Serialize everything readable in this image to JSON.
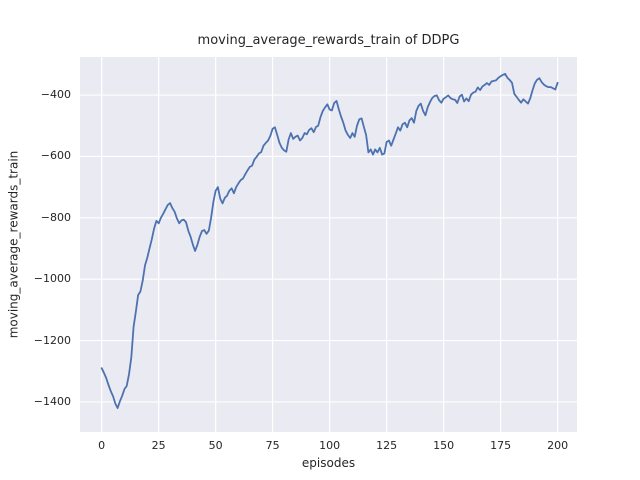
{
  "chart_data": {
    "type": "line",
    "title": "moving_average_rewards_train of DDPG",
    "xlabel": "episodes",
    "ylabel": "moving_average_rewards_train",
    "x_ticks": [
      0,
      25,
      50,
      75,
      100,
      125,
      150,
      175,
      200
    ],
    "y_ticks": [
      -1400,
      -1200,
      -1000,
      -800,
      -600,
      -400
    ],
    "xlim": [
      -9.5,
      208.5
    ],
    "ylim": [
      -1498,
      -276
    ],
    "grid": true,
    "legend": "none",
    "colors": {
      "line": "#4c72b0",
      "axes_background": "#eaeaf2",
      "grid": "#ffffff",
      "figure_background": "#ffffff",
      "text": "#262626"
    },
    "series": [
      {
        "name": "moving_average_rewards_train",
        "x_start": 0,
        "x_step": 1,
        "values": [
          -1290,
          -1305,
          -1322,
          -1345,
          -1365,
          -1382,
          -1405,
          -1420,
          -1398,
          -1380,
          -1358,
          -1348,
          -1310,
          -1255,
          -1155,
          -1105,
          -1052,
          -1040,
          -1005,
          -955,
          -930,
          -900,
          -870,
          -835,
          -810,
          -818,
          -800,
          -787,
          -772,
          -758,
          -752,
          -768,
          -780,
          -802,
          -818,
          -808,
          -806,
          -814,
          -842,
          -862,
          -888,
          -908,
          -888,
          -862,
          -843,
          -840,
          -852,
          -842,
          -800,
          -748,
          -712,
          -700,
          -737,
          -753,
          -735,
          -728,
          -712,
          -704,
          -720,
          -700,
          -688,
          -677,
          -672,
          -658,
          -645,
          -634,
          -630,
          -610,
          -601,
          -590,
          -586,
          -565,
          -556,
          -548,
          -532,
          -510,
          -505,
          -530,
          -556,
          -572,
          -580,
          -585,
          -545,
          -524,
          -543,
          -536,
          -532,
          -548,
          -540,
          -524,
          -528,
          -514,
          -508,
          -521,
          -504,
          -500,
          -472,
          -452,
          -440,
          -430,
          -447,
          -450,
          -426,
          -419,
          -446,
          -470,
          -490,
          -516,
          -530,
          -540,
          -524,
          -536,
          -500,
          -479,
          -476,
          -503,
          -530,
          -587,
          -577,
          -594,
          -577,
          -587,
          -572,
          -594,
          -590,
          -553,
          -548,
          -565,
          -545,
          -525,
          -505,
          -516,
          -495,
          -490,
          -505,
          -483,
          -475,
          -490,
          -452,
          -435,
          -428,
          -452,
          -466,
          -440,
          -423,
          -410,
          -403,
          -401,
          -417,
          -425,
          -412,
          -407,
          -401,
          -410,
          -414,
          -415,
          -426,
          -405,
          -399,
          -421,
          -411,
          -420,
          -399,
          -392,
          -389,
          -375,
          -384,
          -372,
          -367,
          -361,
          -367,
          -356,
          -354,
          -352,
          -344,
          -339,
          -334,
          -331,
          -344,
          -351,
          -360,
          -396,
          -406,
          -416,
          -425,
          -414,
          -421,
          -428,
          -410,
          -385,
          -362,
          -350,
          -345,
          -358,
          -366,
          -371,
          -374,
          -374,
          -378,
          -382,
          -360
        ]
      }
    ]
  }
}
